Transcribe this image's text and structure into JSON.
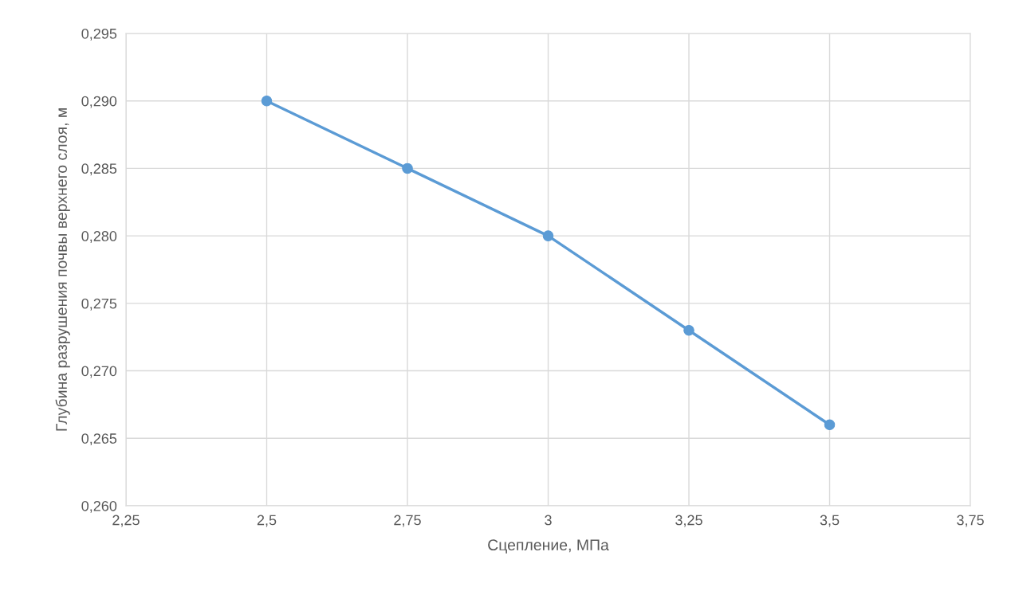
{
  "chart_data": {
    "type": "line",
    "xlabel": "Сцепление, МПа",
    "ylabel": "Глубина разрушения почвы верхнего слоя, м",
    "x": [
      2.5,
      2.75,
      3,
      3.25,
      3.5
    ],
    "series": [
      {
        "color": "#5b9bd5",
        "values": [
          0.29,
          0.285,
          0.28,
          0.273,
          0.266
        ]
      }
    ],
    "xlim": [
      2.25,
      3.75
    ],
    "xticks": [
      {
        "value": 2.25,
        "label": "2,25"
      },
      {
        "value": 2.5,
        "label": "2,5"
      },
      {
        "value": 2.75,
        "label": "2,75"
      },
      {
        "value": 3,
        "label": "3"
      },
      {
        "value": 3.25,
        "label": "3,25"
      },
      {
        "value": 3.5,
        "label": "3,5"
      },
      {
        "value": 3.75,
        "label": "3,75"
      }
    ],
    "ylim": [
      0.26,
      0.295
    ],
    "yticks": [
      {
        "value": 0.26,
        "label": "0,260"
      },
      {
        "value": 0.265,
        "label": "0,265"
      },
      {
        "value": 0.27,
        "label": "0,270"
      },
      {
        "value": 0.275,
        "label": "0,275"
      },
      {
        "value": 0.28,
        "label": "0,280"
      },
      {
        "value": 0.285,
        "label": "0,285"
      },
      {
        "value": 0.29,
        "label": "0,290"
      },
      {
        "value": 0.295,
        "label": "0,295"
      }
    ],
    "grid": true,
    "marker": "circle",
    "line_style": "solid"
  }
}
